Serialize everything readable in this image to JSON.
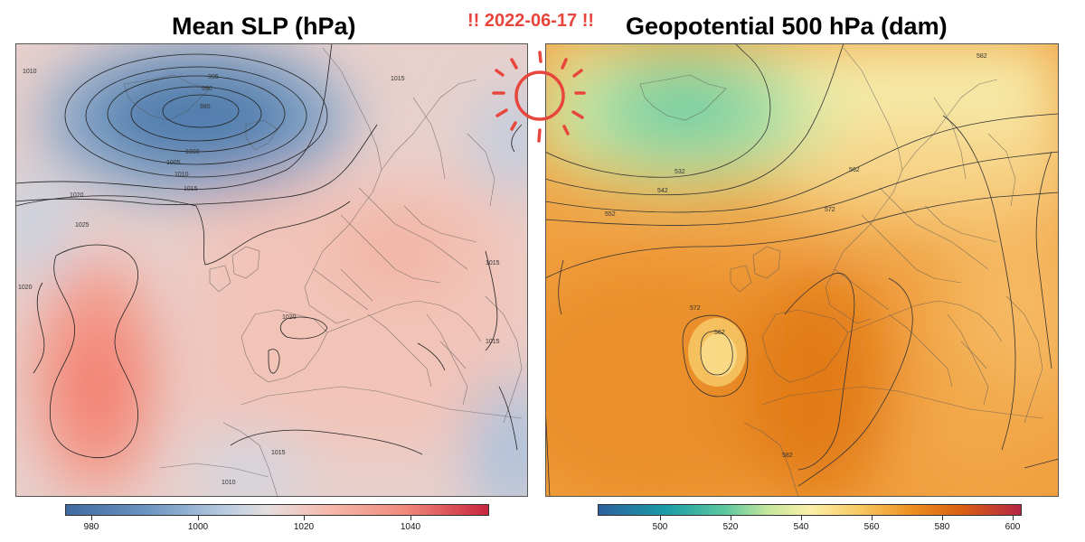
{
  "left_panel": {
    "title": "Mean SLP (hPa)",
    "colorbar_ticks": [
      "980",
      "1000",
      "1020",
      "1040"
    ],
    "contour_labels": [
      "1010",
      "995",
      "990",
      "985",
      "1000",
      "1005",
      "1010",
      "1015",
      "1020",
      "1025",
      "1020",
      "1015",
      "1015",
      "1015",
      "1020",
      "1015",
      "1010"
    ]
  },
  "right_panel": {
    "title": "Geopotential 500 hPa (dam)",
    "colorbar_ticks": [
      "500",
      "520",
      "540",
      "560",
      "580",
      "600"
    ],
    "contour_labels": [
      "532",
      "542",
      "552",
      "562",
      "572",
      "572",
      "562",
      "582",
      "582"
    ]
  },
  "date_banner": "!! 2022-06-17 !!",
  "colors": {
    "date": "#e8453c",
    "sun": "#e8453c",
    "slp_low": "#3e6aa0",
    "slp_high": "#c8243d",
    "z500_low": "#2d5f9e",
    "z500_high": "#b52545"
  },
  "icons": {
    "sun": "sun-icon"
  }
}
